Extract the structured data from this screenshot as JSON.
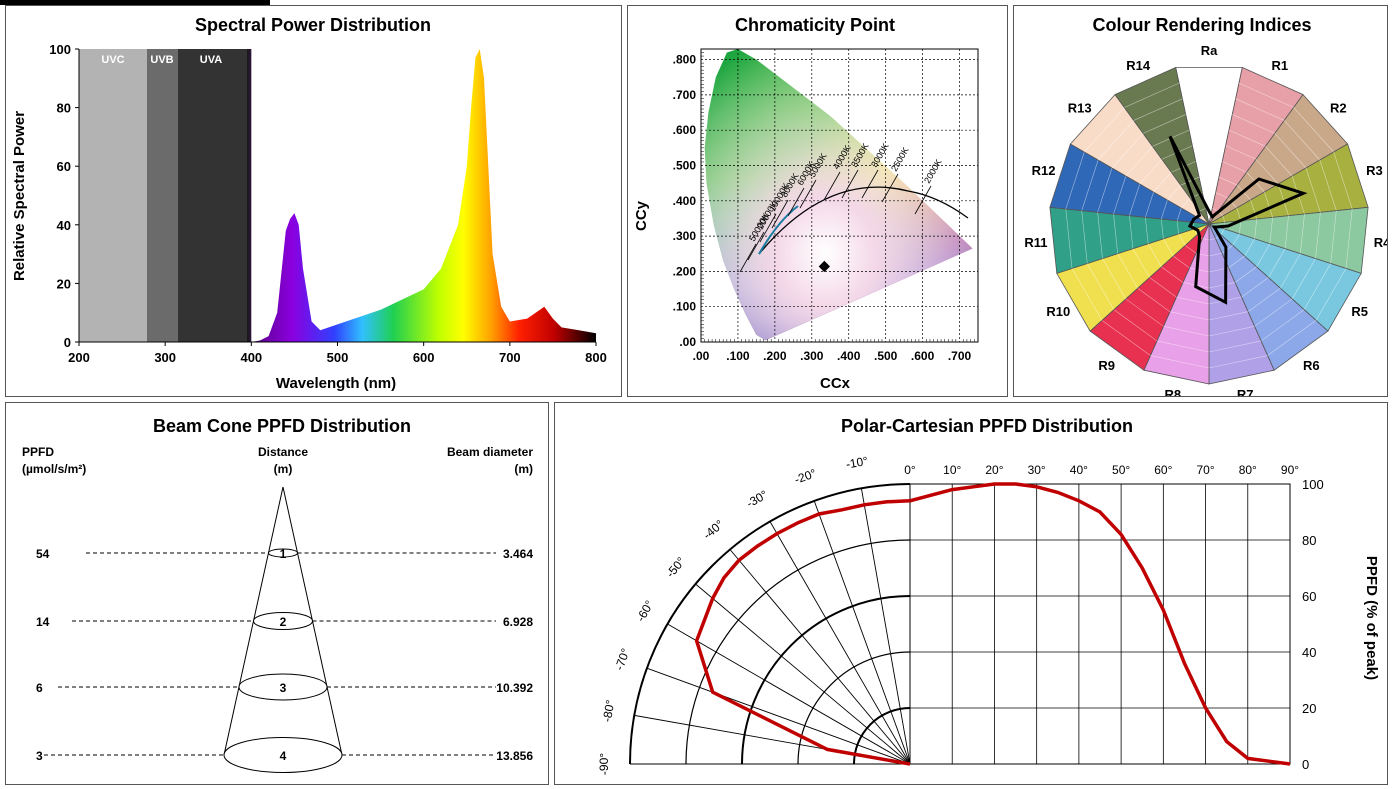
{
  "spd": {
    "title": "Spectral Power Distribution",
    "xlabel": "Wavelength (nm)",
    "ylabel": "Relative Spectral Power",
    "band_labels": [
      "UVC",
      "UVB",
      "UVA"
    ],
    "x_ticks": [
      "200",
      "300",
      "400",
      "500",
      "600",
      "700",
      "800"
    ],
    "y_ticks": [
      "0",
      "20",
      "40",
      "60",
      "80",
      "100"
    ]
  },
  "chroma": {
    "title": "Chromaticity Point",
    "xlabel": "CCx",
    "ylabel": "CCy",
    "x_ticks": [
      ".00",
      ".100",
      ".200",
      ".300",
      ".400",
      ".500",
      ".600",
      ".700"
    ],
    "y_ticks": [
      ".00",
      ".100",
      ".200",
      ".300",
      ".400",
      ".500",
      ".600",
      ".700",
      ".800"
    ],
    "cct_labels": [
      "50000K",
      "20000K",
      "10000K",
      "8000K",
      "6000K",
      "5000K",
      "4000K",
      "3500K",
      "3000K",
      "2500K",
      "2000K"
    ]
  },
  "cri": {
    "title": "Colour Rendering Indices",
    "labels": [
      "Ra",
      "R1",
      "R2",
      "R3",
      "R4",
      "R5",
      "R6",
      "R7",
      "R8",
      "R9",
      "R10",
      "R11",
      "R12",
      "R13",
      "R14"
    ],
    "colors": [
      "#ffffff",
      "#e8a0a8",
      "#c9a889",
      "#a8b040",
      "#8cc8a0",
      "#7ac8e0",
      "#8ca8e8",
      "#b0a0e8",
      "#e8a0e8",
      "#e83050",
      "#f0e050",
      "#30a088",
      "#3068b8",
      "#f8dcc8",
      "#6a7a50"
    ]
  },
  "beam": {
    "title": "Beam Cone PPFD Distribution",
    "col_ppfd": "PPFD",
    "col_ppfd_unit": "(µmol/s/m²)",
    "col_distance": "Distance",
    "col_distance_unit": "(m)",
    "col_diameter": "Beam diameter",
    "col_diameter_unit": "(m)",
    "rows": [
      {
        "ppfd": "54",
        "distance": "1",
        "diameter": "3.464"
      },
      {
        "ppfd": "14",
        "distance": "2",
        "diameter": "6.928"
      },
      {
        "ppfd": "6",
        "distance": "3",
        "diameter": "10.392"
      },
      {
        "ppfd": "3",
        "distance": "4",
        "diameter": "13.856"
      }
    ]
  },
  "polar": {
    "title": "Polar-Cartesian PPFD Distribution",
    "ylabel": "PPFD (% of peak)",
    "polar_angle_labels": [
      "-90°",
      "-80°",
      "-70°",
      "-60°",
      "-50°",
      "-40°",
      "-30°",
      "-20°",
      "-10°"
    ],
    "x_angle_labels": [
      "0°",
      "10°",
      "20°",
      "30°",
      "40°",
      "50°",
      "60°",
      "70°",
      "80°",
      "90°"
    ],
    "y_ticks": [
      "0",
      "20",
      "40",
      "60",
      "80",
      "100"
    ]
  },
  "chart_data": [
    {
      "type": "area",
      "title": "Spectral Power Distribution",
      "xlabel": "Wavelength (nm)",
      "ylabel": "Relative Spectral Power",
      "xlim": [
        200,
        800
      ],
      "ylim": [
        0,
        100
      ],
      "grid": false,
      "x": [
        400,
        410,
        420,
        430,
        440,
        445,
        450,
        455,
        460,
        470,
        480,
        500,
        550,
        600,
        620,
        640,
        650,
        655,
        660,
        665,
        670,
        675,
        680,
        690,
        700,
        720,
        740,
        750,
        760,
        780,
        800
      ],
      "series": [
        {
          "values": [
            0,
            0.5,
            2,
            10,
            38,
            42,
            44,
            40,
            25,
            7,
            4,
            6,
            11,
            18,
            25,
            40,
            60,
            80,
            97,
            100,
            90,
            60,
            30,
            12,
            7,
            8,
            12,
            8,
            5,
            4,
            3
          ]
        }
      ]
    },
    {
      "type": "scatter",
      "title": "Chromaticity Point",
      "xlabel": "CCx",
      "ylabel": "CCy",
      "xlim": [
        0,
        0.75
      ],
      "ylim": [
        0,
        0.83
      ],
      "grid": true,
      "series": [
        {
          "x": [
            0.334
          ],
          "y": [
            0.214
          ]
        }
      ]
    },
    {
      "type": "radar",
      "title": "Colour Rendering Indices",
      "categories": [
        "Ra",
        "R1",
        "R2",
        "R3",
        "R4",
        "R5",
        "R6",
        "R7",
        "R8",
        "R9",
        "R10",
        "R11",
        "R12",
        "R13",
        "R14"
      ],
      "series": [
        {
          "values": [
            8,
            5,
            42,
            62,
            12,
            4,
            18,
            50,
            40,
            10,
            8,
            12,
            10,
            8,
            60
          ]
        }
      ]
    },
    {
      "type": "line",
      "title": "Polar-Cartesian PPFD Distribution",
      "xlabel": "",
      "ylabel": "PPFD (% of peak)",
      "xlim": [
        -90,
        90
      ],
      "ylim": [
        0,
        100
      ],
      "grid": true,
      "x": [
        -90,
        -80,
        -70,
        -60,
        -50,
        -45,
        -40,
        -35,
        -30,
        -25,
        -20,
        -15,
        -10,
        -5,
        0,
        5,
        10,
        15,
        20,
        25,
        30,
        35,
        40,
        45,
        50,
        55,
        60,
        65,
        70,
        75,
        80,
        85,
        90
      ],
      "series": [
        {
          "values": [
            0,
            30,
            75,
            88,
            92,
            94,
            95,
            95,
            95,
            95,
            95,
            94,
            94,
            94,
            94,
            96,
            98,
            99,
            100,
            100,
            99,
            97,
            94,
            90,
            82,
            70,
            55,
            36,
            20,
            8,
            2,
            1,
            0
          ]
        }
      ]
    }
  ]
}
